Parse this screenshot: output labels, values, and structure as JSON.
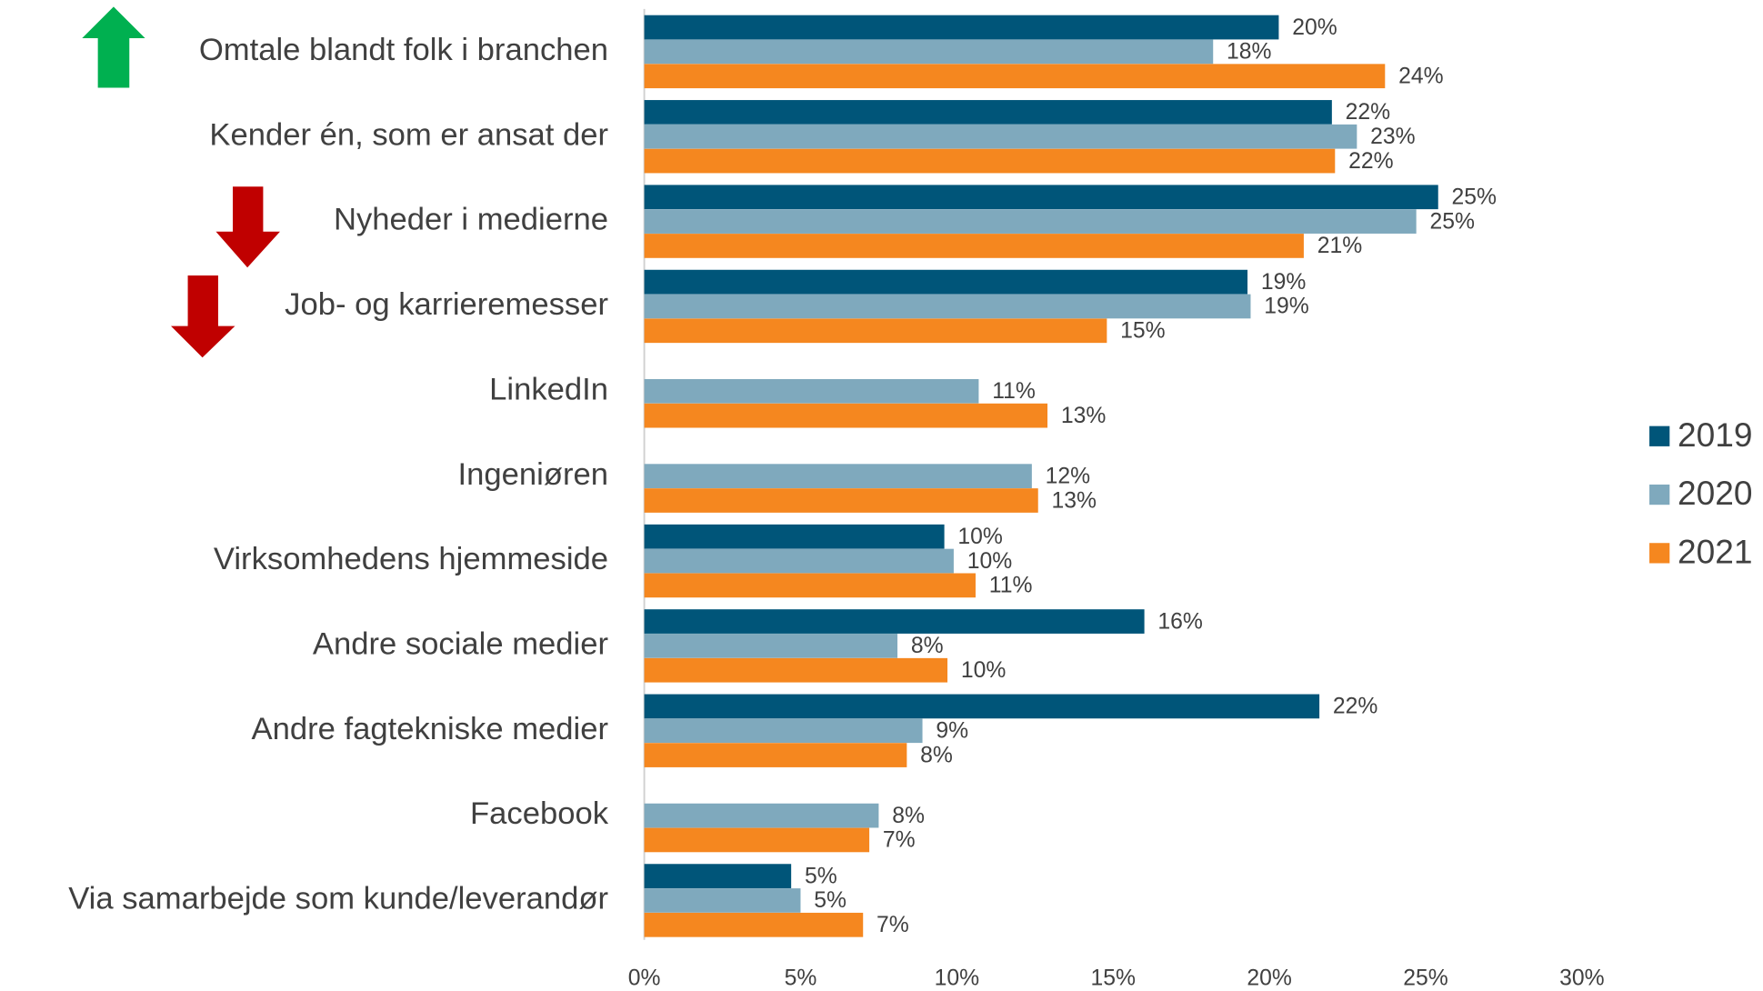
{
  "chart_data": {
    "type": "hbar",
    "categories": [
      "Omtale blandt folk i branchen",
      "Kender én, som er ansat der",
      "Nyheder i medierne",
      "Job- og karrieremesser",
      "LinkedIn",
      "Ingeniøren",
      "Virksomhedens hjemmeside",
      "Andre sociale medier",
      "Andre fagtekniske medier",
      "Facebook",
      "Via samarbejde som kunde/leverandør"
    ],
    "series": [
      {
        "name": "2019",
        "color": "#005579",
        "values": [
          20.3,
          22.0,
          25.4,
          19.3,
          null,
          null,
          9.6,
          16.0,
          21.6,
          null,
          4.7
        ],
        "value_labels": [
          "20%",
          "22%",
          "25%",
          "19%",
          null,
          null,
          "10%",
          "16%",
          "22%",
          null,
          "5%"
        ]
      },
      {
        "name": "2020",
        "color": "#7fa9bd",
        "values": [
          18.2,
          22.8,
          24.7,
          19.4,
          10.7,
          12.4,
          9.9,
          8.1,
          8.9,
          7.5,
          5.0
        ],
        "value_labels": [
          "18%",
          "23%",
          "25%",
          "19%",
          "11%",
          "12%",
          "10%",
          "8%",
          "9%",
          "8%",
          "5%"
        ]
      },
      {
        "name": "2021",
        "color": "#f5871f",
        "values": [
          23.7,
          22.1,
          21.1,
          14.8,
          12.9,
          12.6,
          10.6,
          9.7,
          8.4,
          7.2,
          7.0
        ],
        "value_labels": [
          "24%",
          "22%",
          "21%",
          "15%",
          "13%",
          "13%",
          "11%",
          "10%",
          "8%",
          "7%",
          "7%"
        ]
      }
    ],
    "xlim": [
      0,
      30
    ],
    "xticks": [
      {
        "value": 0,
        "label": "0%"
      },
      {
        "value": 5,
        "label": "5%"
      },
      {
        "value": 10,
        "label": "10%"
      },
      {
        "value": 15,
        "label": "15%"
      },
      {
        "value": 20,
        "label": "20%"
      },
      {
        "value": 25,
        "label": "25%"
      },
      {
        "value": 30,
        "label": "30%"
      }
    ],
    "legend": "right"
  }
}
